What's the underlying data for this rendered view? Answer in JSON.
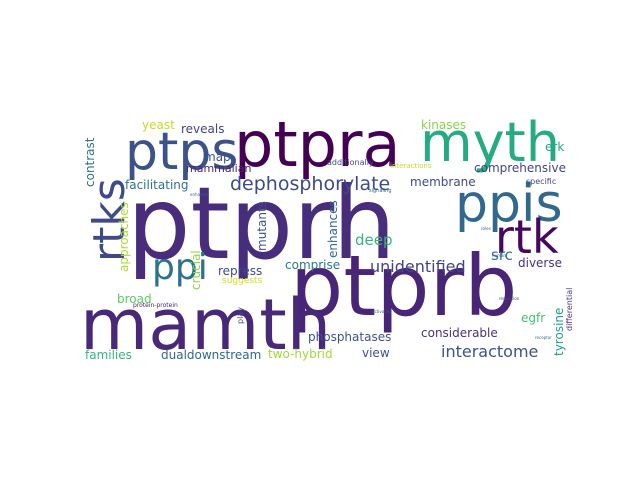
{
  "words": [
    {
      "text": "ptprh",
      "color": "#472d7b"
    },
    {
      "text": "ptprb",
      "color": "#482576"
    },
    {
      "text": "mamth",
      "color": "#482878"
    },
    {
      "text": "ptpra",
      "color": "#440154"
    },
    {
      "text": "myth",
      "color": "#25ab82"
    },
    {
      "text": "ptps",
      "color": "#3b528b"
    },
    {
      "text": "ppis",
      "color": "#31688e"
    },
    {
      "text": "rtks",
      "color": "#3e4a89"
    },
    {
      "text": "rtk",
      "color": "#46085c"
    },
    {
      "text": "ppi",
      "color": "#2c728e"
    },
    {
      "text": "dephosphorylate",
      "color": "#3e4a89"
    },
    {
      "text": "unidentified",
      "color": "#414487"
    },
    {
      "text": "interactome",
      "color": "#3b528b"
    },
    {
      "text": "deep",
      "color": "#35b779"
    },
    {
      "text": "src",
      "color": "#2a788e"
    },
    {
      "text": "mutants",
      "color": "#3b528b"
    },
    {
      "text": "enhances",
      "color": "#31688e"
    },
    {
      "text": "facilitating",
      "color": "#2c728e"
    },
    {
      "text": "mammalian",
      "color": "#482576"
    },
    {
      "text": "comprehensive",
      "color": "#414487"
    },
    {
      "text": "membrane",
      "color": "#3e4a89"
    },
    {
      "text": "phosphatases",
      "color": "#3b528b"
    },
    {
      "text": "considerable",
      "color": "#46337e"
    },
    {
      "text": "comprise",
      "color": "#2a788e"
    },
    {
      "text": "repress",
      "color": "#3e4a89"
    },
    {
      "text": "diverse",
      "color": "#46327e"
    },
    {
      "text": "kinases",
      "color": "#86d549"
    },
    {
      "text": "yeast",
      "color": "#bddf26"
    },
    {
      "text": "reveals",
      "color": "#414487"
    },
    {
      "text": "map",
      "color": "#3b528b"
    },
    {
      "text": "erk",
      "color": "#22a884"
    },
    {
      "text": "tyrosine",
      "color": "#1f9e89"
    },
    {
      "text": "contrast",
      "color": "#2c728e"
    },
    {
      "text": "approaches",
      "color": "#addc30"
    },
    {
      "text": "crucial",
      "color": "#90d743"
    },
    {
      "text": "broad",
      "color": "#5ec962"
    },
    {
      "text": "families",
      "color": "#35b779"
    },
    {
      "text": "dualdownstream",
      "color": "#31688e"
    },
    {
      "text": "two-hybrid",
      "color": "#9fda3a"
    },
    {
      "text": "view",
      "color": "#3b528b"
    },
    {
      "text": "egfr",
      "color": "#44bf70"
    },
    {
      "text": "differential",
      "color": "#46337e"
    },
    {
      "text": "additionally",
      "color": "#3e4a89"
    },
    {
      "text": "interactions",
      "color": "#bddf26"
    },
    {
      "text": "specific",
      "color": "#3e4a89"
    },
    {
      "text": "suggests",
      "color": "#d2e21b"
    },
    {
      "text": "protein-protein",
      "color": "#482576"
    },
    {
      "text": "signaling",
      "color": "#31688e"
    },
    {
      "text": "enhances",
      "color": "#31688e"
    },
    {
      "text": "roles",
      "color": "#3b528b"
    },
    {
      "text": "human",
      "color": "#3b528b"
    },
    {
      "text": "regulation",
      "color": "#3e4a89"
    },
    {
      "text": "activating",
      "color": "#31688e"
    },
    {
      "text": "play",
      "color": "#3b528b"
    },
    {
      "text": "receptor",
      "color": "#2c728e"
    }
  ]
}
